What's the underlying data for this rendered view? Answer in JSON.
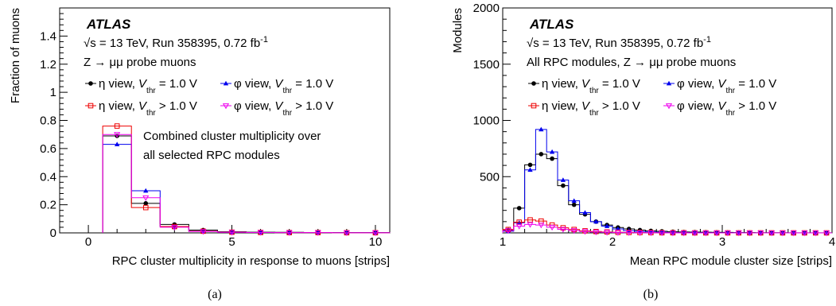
{
  "captions": [
    "(a)",
    "(b)"
  ],
  "chart_data": [
    {
      "type": "histogram",
      "ylabel": "Fraction of muons",
      "xlabel": "RPC cluster multiplicity in response to muons [strips]",
      "xlim": [
        -1,
        10.5
      ],
      "ylim": [
        0,
        1.6
      ],
      "xticks": [
        0,
        5,
        10
      ],
      "yticks": [
        0,
        0.2,
        0.4,
        0.6,
        0.8,
        1,
        1.2,
        1.4
      ],
      "ytick_labels": [
        "0",
        "0.2",
        "0.4",
        "0.6",
        "0.8",
        "1",
        "1.2",
        "1.4"
      ],
      "atlas_label": "ATLAS",
      "info_lines": [
        "√s = 13 TeV, Run 358395, 0.72 fb",
        "Z → μμ probe muons"
      ],
      "info_superscript": "-1",
      "annotation": [
        "Combined cluster multiplicity over",
        "all selected RPC modules"
      ],
      "bins": [
        0.5,
        1.5,
        2.5,
        3.5,
        4.5,
        5.5,
        6.5,
        7.5,
        8.5,
        9.5,
        10.5
      ],
      "series": [
        {
          "name": "η view, V_thr = 1.0 V",
          "legend_prefix": "η view, ",
          "legend_sub": "thr",
          "legend_suffix": " = 1.0 V",
          "color": "#000000",
          "marker": "circle",
          "values": [
            0.69,
            0.21,
            0.06,
            0.02,
            0.008,
            0.005,
            0.004,
            0.003,
            0.002,
            0.002
          ]
        },
        {
          "name": "φ view, V_thr = 1.0 V",
          "legend_prefix": "φ view, ",
          "legend_sub": "thr",
          "legend_suffix": " = 1.0 V",
          "color": "#0000ee",
          "marker": "triangle-up",
          "values": [
            0.63,
            0.3,
            0.045,
            0.012,
            0.005,
            0.003,
            0.002,
            0.002,
            0.001,
            0.001
          ]
        },
        {
          "name": "η view, V_thr > 1.0 V",
          "legend_prefix": "η view, ",
          "legend_sub": "thr",
          "legend_suffix": " > 1.0 V",
          "color": "#ee0000",
          "marker": "square-open",
          "values": [
            0.76,
            0.18,
            0.045,
            0.012,
            0.005,
            0.003,
            0.002,
            0.002,
            0.001,
            0.001
          ]
        },
        {
          "name": "φ view, V_thr > 1.0 V",
          "legend_prefix": "φ view, ",
          "legend_sub": "thr",
          "legend_suffix": " > 1.0 V",
          "color": "#ee00ee",
          "marker": "triangle-down-open",
          "values": [
            0.7,
            0.25,
            0.04,
            0.01,
            0.004,
            0.003,
            0.002,
            0.002,
            0.001,
            0.001
          ]
        }
      ]
    },
    {
      "type": "histogram",
      "ylabel": "Modules",
      "xlabel": "Mean RPC module cluster size [strips]",
      "xlim": [
        1,
        4
      ],
      "ylim": [
        0,
        2000
      ],
      "xticks": [
        1,
        2,
        3,
        4
      ],
      "yticks": [
        500,
        1000,
        1500,
        2000
      ],
      "ytick_labels": [
        "500",
        "1000",
        "1500",
        "2000"
      ],
      "atlas_label": "ATLAS",
      "info_lines": [
        "√s = 13 TeV, Run 358395, 0.72 fb",
        "All RPC modules, Z → μμ probe muons"
      ],
      "info_superscript": "-1",
      "bin_start": 1.0,
      "bin_width": 0.1,
      "series": [
        {
          "name": "η view, V_thr = 1.0 V",
          "legend_prefix": "η view, ",
          "legend_sub": "thr",
          "legend_suffix": " = 1.0 V",
          "color": "#000000",
          "marker": "circle",
          "values": [
            25,
            220,
            605,
            700,
            660,
            420,
            250,
            165,
            100,
            70,
            48,
            35,
            25,
            18,
            14,
            10,
            8,
            7,
            6,
            5,
            4,
            3,
            3,
            2,
            2,
            2,
            1,
            1,
            1,
            1
          ]
        },
        {
          "name": "φ view, V_thr = 1.0 V",
          "legend_prefix": "φ view, ",
          "legend_sub": "thr",
          "legend_suffix": " = 1.0 V",
          "color": "#0000ee",
          "marker": "triangle-up",
          "values": [
            15,
            90,
            560,
            920,
            720,
            470,
            285,
            180,
            100,
            60,
            35,
            20,
            12,
            8,
            5,
            3,
            2,
            2,
            1,
            1,
            1,
            1,
            0,
            0,
            0,
            0,
            0,
            0,
            0,
            0
          ]
        },
        {
          "name": "η view, V_thr > 1.0 V",
          "legend_prefix": "η view, ",
          "legend_sub": "thr",
          "legend_suffix": " > 1.0 V",
          "color": "#ee0000",
          "marker": "square-open",
          "values": [
            30,
            95,
            115,
            105,
            70,
            45,
            30,
            18,
            12,
            8,
            5,
            4,
            3,
            2,
            1,
            1,
            1,
            0,
            0,
            0,
            0,
            0,
            0,
            0,
            0,
            0,
            0,
            0,
            0,
            0
          ]
        },
        {
          "name": "φ view, V_thr > 1.0 V",
          "legend_prefix": "φ view, ",
          "legend_sub": "thr",
          "legend_suffix": " > 1.0 V",
          "color": "#ee00ee",
          "marker": "triangle-down-open",
          "values": [
            20,
            60,
            75,
            70,
            50,
            32,
            20,
            12,
            8,
            5,
            3,
            2,
            1,
            1,
            1,
            0,
            0,
            0,
            0,
            0,
            0,
            0,
            0,
            0,
            0,
            0,
            0,
            0,
            0,
            0
          ]
        }
      ]
    }
  ]
}
